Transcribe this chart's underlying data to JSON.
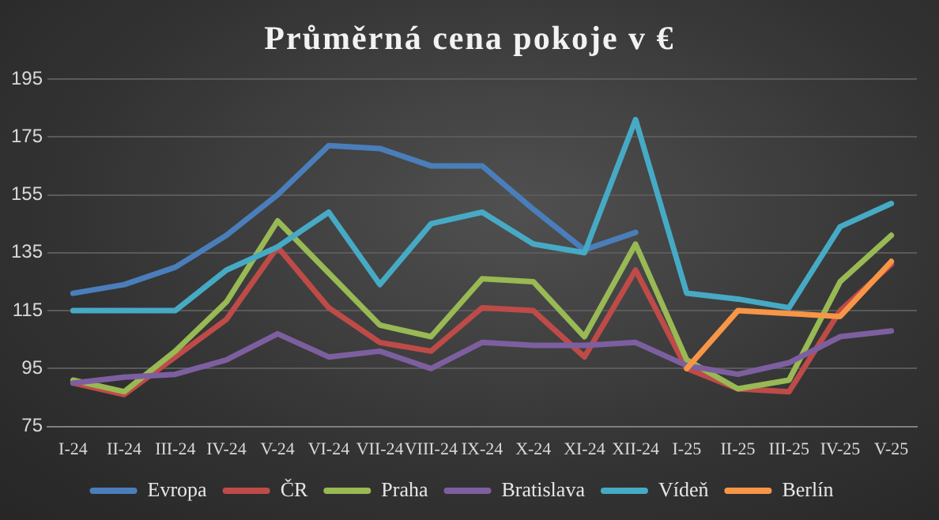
{
  "chart_data": {
    "type": "line",
    "title": "Průměrná cena pokoje v €",
    "categories": [
      "I-24",
      "II-24",
      "III-24",
      "IV-24",
      "V-24",
      "VI-24",
      "VII-24",
      "VIII-24",
      "IX-24",
      "X-24",
      "XI-24",
      "XII-24",
      "I-25",
      "II-25",
      "III-25",
      "IV-25",
      "V-25"
    ],
    "series": [
      {
        "name": "Evropa",
        "color": "#4a7ebb",
        "values": [
          121,
          124,
          130,
          141,
          155,
          172,
          171,
          165,
          165,
          150,
          136,
          142,
          null,
          null,
          null,
          null,
          null
        ]
      },
      {
        "name": "ČR",
        "color": "#be4b48",
        "values": [
          90,
          86,
          99,
          112,
          137,
          116,
          104,
          101,
          116,
          115,
          99,
          129,
          95,
          88,
          87,
          115,
          131
        ]
      },
      {
        "name": "Praha",
        "color": "#98b954",
        "values": [
          91,
          87,
          101,
          118,
          146,
          128,
          110,
          106,
          126,
          125,
          106,
          138,
          98,
          88,
          91,
          125,
          141
        ]
      },
      {
        "name": "Bratislava",
        "color": "#7d5fa0",
        "values": [
          90,
          92,
          93,
          98,
          107,
          99,
          101,
          95,
          104,
          103,
          103,
          104,
          96,
          93,
          97,
          106,
          108
        ]
      },
      {
        "name": "Vídeň",
        "color": "#46aac5",
        "values": [
          115,
          115,
          115,
          129,
          137,
          149,
          124,
          145,
          149,
          138,
          135,
          181,
          121,
          119,
          116,
          144,
          152
        ]
      },
      {
        "name": "Berlín",
        "color": "#f79646",
        "values": [
          null,
          null,
          null,
          null,
          null,
          null,
          null,
          null,
          null,
          null,
          null,
          null,
          95,
          115,
          114,
          113,
          132
        ]
      }
    ],
    "ylim": [
      75,
      195
    ],
    "yticks": [
      75,
      95,
      115,
      135,
      155,
      175,
      195
    ],
    "grid": "y",
    "legend": "bottom",
    "marker": "none",
    "line_style": "solid"
  }
}
